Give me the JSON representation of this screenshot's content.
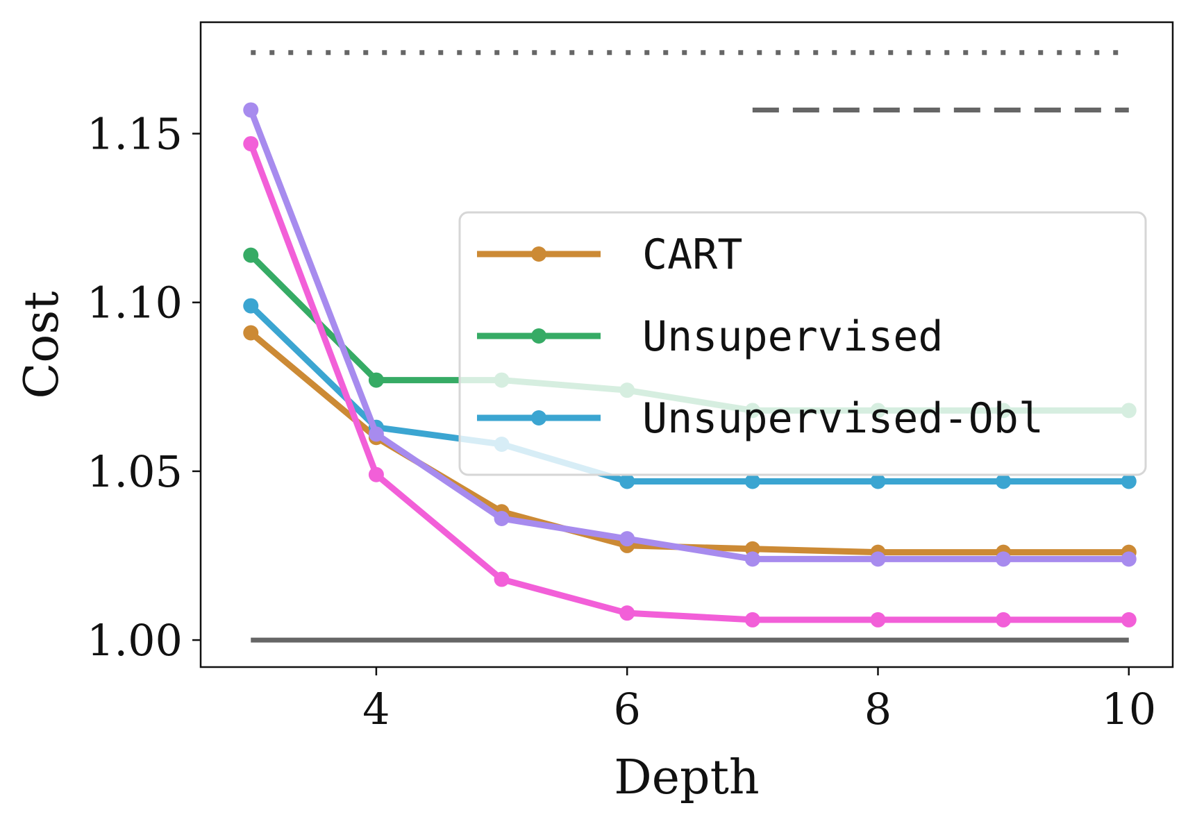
{
  "chart_data": {
    "type": "line",
    "xlabel": "Depth",
    "ylabel": "Cost",
    "xlim": [
      2.6,
      10.35
    ],
    "ylim": [
      0.992,
      1.183
    ],
    "x_ticks": [
      4,
      6,
      8,
      10
    ],
    "y_ticks": [
      1.0,
      1.05,
      1.1,
      1.15
    ],
    "y_tick_labels": [
      "1.00",
      "1.05",
      "1.10",
      "1.15"
    ],
    "grid": false,
    "legend_position": "center-right",
    "x": [
      3,
      4,
      5,
      6,
      7,
      8,
      9,
      10
    ],
    "series": [
      {
        "name": "CART",
        "color": "#cc8a35",
        "values": [
          1.091,
          1.06,
          1.038,
          1.028,
          1.027,
          1.026,
          1.026,
          1.026
        ]
      },
      {
        "name": "Unsupervised",
        "color": "#36ab65",
        "values": [
          1.114,
          1.077,
          1.077,
          1.074,
          1.068,
          1.068,
          1.068,
          1.068
        ]
      },
      {
        "name": "Unsupervised-Obl",
        "color": "#3ba5d1",
        "values": [
          1.099,
          1.063,
          1.058,
          1.047,
          1.047,
          1.047,
          1.047,
          1.047
        ]
      },
      {
        "color": "#f25fd8",
        "values": [
          1.147,
          1.049,
          1.018,
          1.008,
          1.006,
          1.006,
          1.006,
          1.006
        ]
      },
      {
        "color": "#a78bee",
        "values": [
          1.157,
          1.061,
          1.036,
          1.03,
          1.024,
          1.024,
          1.024,
          1.024
        ]
      }
    ],
    "reference_lines": [
      {
        "style": "dotted",
        "color": "#666666",
        "y": 1.174,
        "x_range": [
          3,
          10
        ]
      },
      {
        "style": "dashed",
        "color": "#666666",
        "y": 1.157,
        "x_range": [
          7,
          10
        ]
      },
      {
        "style": "solid",
        "color": "#666666",
        "y": 1.0,
        "x_range": [
          3,
          10
        ]
      }
    ]
  }
}
